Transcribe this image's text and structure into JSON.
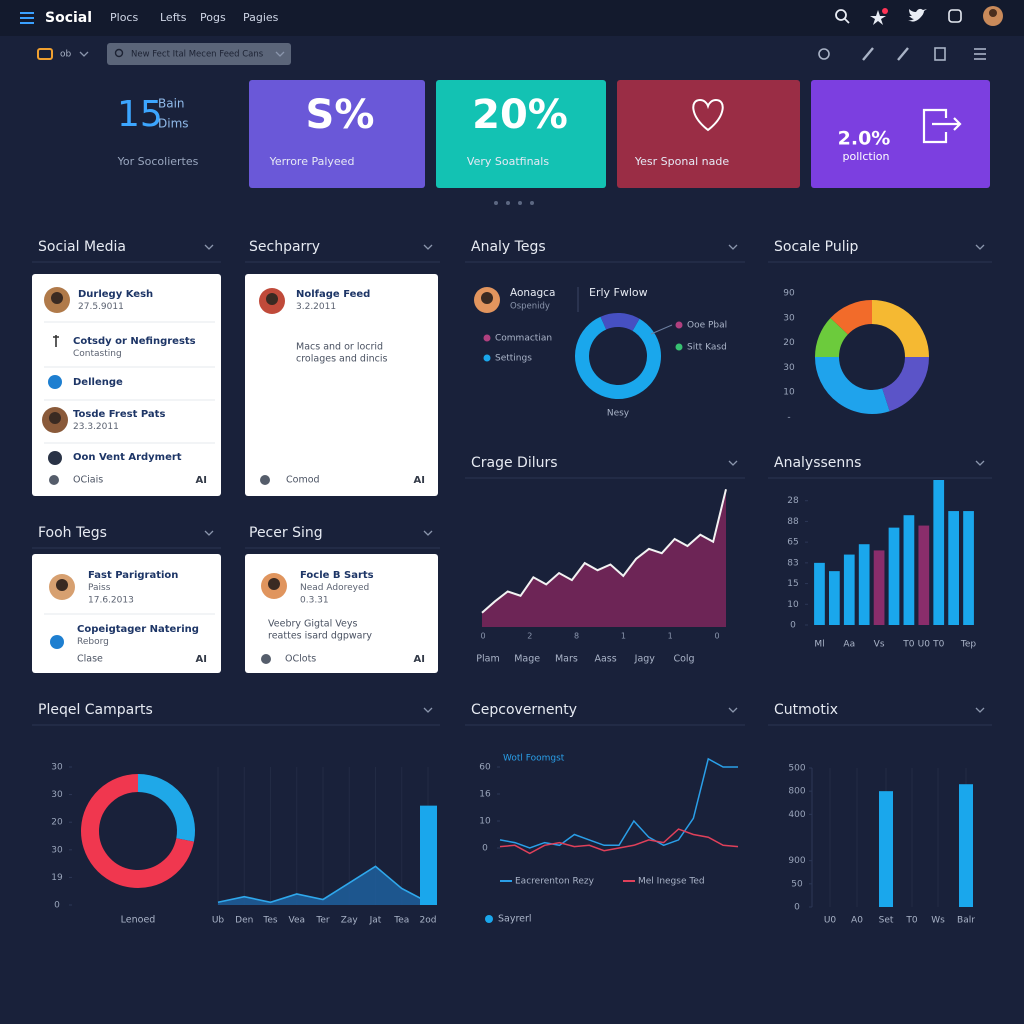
{
  "nav": {
    "brand": "Social",
    "links": [
      "Plocs",
      "Lefts",
      "Pogs",
      "Pagies"
    ]
  },
  "toolbar": {
    "selector": "ob",
    "search": "New Fect Ital Mecen Feed Cans"
  },
  "summary": {
    "value": "15",
    "unit": [
      "Bain",
      "Dims"
    ],
    "label": "Yor Socoliertes"
  },
  "stat_cards": [
    {
      "value": "S%",
      "label": "Yerrore Palyeed",
      "color": "#6a58d8"
    },
    {
      "value": "20%",
      "label": "Very Soatfinals",
      "color": "#13c2b3"
    },
    {
      "label": "Yesr Sponal nade",
      "color": "#9a2d45"
    },
    {
      "value": "2.0%",
      "label": "pollction",
      "color": "#7c3fe0"
    }
  ],
  "feeds": [
    {
      "title": "Social Media",
      "items": [
        {
          "name": "Durlegy Kesh",
          "date": "27.5.9011"
        },
        {
          "name": "Cotsdy or Nefingrests",
          "sub": "Contasting"
        },
        {
          "name": "Dellenge"
        },
        {
          "name": "Tosde Frest Pats",
          "date": "23.3.2011"
        },
        {
          "name": "Oon Vent Ardymert"
        }
      ],
      "footer": [
        "OCiais",
        "AI"
      ]
    },
    {
      "title": "Sechparry",
      "items": [
        {
          "name": "Nolfage Feed",
          "date": "3.2.2011"
        }
      ],
      "body": [
        "Macs and or locrid",
        "crolages and dincis"
      ],
      "footer": [
        "Comod",
        "AI"
      ]
    },
    {
      "title": "Fooh Tegs",
      "items": [
        {
          "name": "Fast Parigration",
          "sub": "Paiss",
          "date": "17.6.2013"
        },
        {
          "name": "Copeigtager Natering",
          "sub": "Reborg"
        }
      ],
      "footer": [
        "Clase",
        "AI"
      ]
    },
    {
      "title": "Pecer Sing",
      "items": [
        {
          "name": "Focle B Sarts",
          "sub": "Nead Adoreyed",
          "date": "0.3.31"
        }
      ],
      "body": [
        "Veebry Gigtal Veys",
        "reattes isard dgpwary"
      ],
      "footer": [
        "OClots",
        "AI"
      ]
    }
  ],
  "charts": [
    {
      "title": "Analy Tegs",
      "type": "donut",
      "profile": {
        "name": "Aonagca",
        "sub": "Ospenidy"
      },
      "subtitle": "Erly Fwlow",
      "values": [
        85,
        15
      ],
      "colors": [
        "#1aa7ec",
        "#4650c2"
      ],
      "legend": [
        {
          "name": "Commactian",
          "color": "#b0407f"
        },
        {
          "name": "Settings",
          "color": "#1aa7ec"
        },
        {
          "name": "Ooe Pbal",
          "color": "#b0407f"
        },
        {
          "name": "Sitt Kasd",
          "color": "#38c172"
        }
      ],
      "caption": "Nesy"
    },
    {
      "title": "Socale Pulip",
      "type": "donut",
      "scale_labels": [
        "90",
        "30",
        "20",
        "30",
        "10",
        "-"
      ],
      "values": [
        25,
        20,
        30,
        12,
        13
      ],
      "colors": [
        "#f5b932",
        "#5b54c8",
        "#1fa3ec",
        "#6ccb3c",
        "#f26b2a"
      ]
    },
    {
      "title": "Crage Dilurs",
      "type": "area",
      "categories": [
        "Plam",
        "Mage",
        "Mars",
        "Aass",
        "Jagy",
        "Colg"
      ],
      "axis_marks": [
        "0",
        "2",
        "8",
        "1",
        "1",
        "0"
      ],
      "values": [
        10,
        18,
        25,
        22,
        35,
        30,
        38,
        33,
        45,
        40,
        44,
        36,
        48,
        55,
        52,
        62,
        57,
        65,
        60,
        97
      ],
      "ylim": [
        0,
        100
      ],
      "color": "#6d2556",
      "line_color": "#f2f2f2"
    },
    {
      "title": "Analyssenns",
      "type": "bar",
      "categories": [
        "Ml",
        null,
        "Aa",
        null,
        "Vs",
        null,
        "T0",
        "U0",
        "T0",
        null,
        "Tep"
      ],
      "values": [
        30,
        26,
        34,
        39,
        36,
        47,
        53,
        48,
        70,
        55,
        55
      ],
      "colors": [
        "#1aa7ec",
        "#1aa7ec",
        "#1aa7ec",
        "#1aa7ec",
        "#8a2d6b",
        "#1aa7ec",
        "#1aa7ec",
        "#8a2d6b",
        "#1aa7ec",
        "#1aa7ec",
        "#1aa7ec"
      ],
      "ylim": [
        0,
        70
      ],
      "yticks": [
        {
          "value": 60,
          "label": "28"
        },
        {
          "value": 50,
          "label": "88"
        },
        {
          "value": 40,
          "label": "65"
        },
        {
          "value": 30,
          "label": "83"
        },
        {
          "value": 20,
          "label": "15"
        },
        10,
        0
      ]
    },
    {
      "title": "Pleqel Camparts",
      "type": "donut_area",
      "donut": {
        "values": [
          28,
          72
        ],
        "colors": [
          "#1fa8e8",
          "#f0374f"
        ],
        "label": "Lenoed"
      },
      "categories": [
        "Ub",
        "Den",
        "Tes",
        "Vea",
        "Ter",
        "Zay",
        "Jat",
        "Tea",
        "2od"
      ],
      "values": [
        0.5,
        1.5,
        0.5,
        2,
        1,
        4,
        7,
        3,
        0.5
      ],
      "bar": 18,
      "ylim": [
        0,
        25
      ],
      "yticks": [
        {
          "value": 25,
          "label": "30"
        },
        {
          "value": 20,
          "label": "30"
        },
        {
          "value": 15,
          "label": "20"
        },
        {
          "value": 10,
          "label": "30"
        },
        {
          "value": 5,
          "label": "19"
        },
        0
      ],
      "color": "#1f5f9e",
      "line_color": "#2fa8ec"
    },
    {
      "title": "Cepcovernenty",
      "type": "line",
      "annotation": "Wotl Foomgst",
      "series": [
        {
          "name": "Eacrerenton Rezy",
          "color": "#2a9fe8",
          "values": [
            3,
            2,
            0,
            2,
            1,
            5,
            3,
            1,
            1,
            10,
            4,
            1,
            3,
            11,
            33,
            30,
            30
          ]
        },
        {
          "name": "Mel Inegse Ted",
          "color": "#e0405a",
          "values": [
            0.5,
            1,
            -2,
            1,
            2,
            0.5,
            1,
            -1,
            0,
            1,
            3,
            2,
            7,
            5,
            4,
            1,
            0.5
          ]
        }
      ],
      "ylim": [
        -5,
        35
      ],
      "yticks": [
        {
          "value": 30,
          "label": "60"
        },
        {
          "value": 20,
          "label": "16"
        },
        10,
        0
      ],
      "footer": "Sayrerl"
    },
    {
      "title": "Cutmotix",
      "type": "bar",
      "categories": [
        "U0",
        "A0",
        "Set",
        "T0",
        "Ws",
        "Balr"
      ],
      "values": [
        null,
        null,
        250,
        null,
        null,
        265
      ],
      "colors": [
        "#1aa7ec",
        "#1aa7ec",
        "#1aa7ec",
        "#1aa7ec",
        "#1aa7ec",
        "#1aa7ec"
      ],
      "ylim": [
        0,
        300
      ],
      "yticks": [
        {
          "value": 300,
          "label": "500"
        },
        {
          "value": 250,
          "label": "800"
        },
        {
          "value": 200,
          "label": "400"
        },
        {
          "value": 100,
          "label": "900"
        },
        50,
        0
      ]
    }
  ]
}
